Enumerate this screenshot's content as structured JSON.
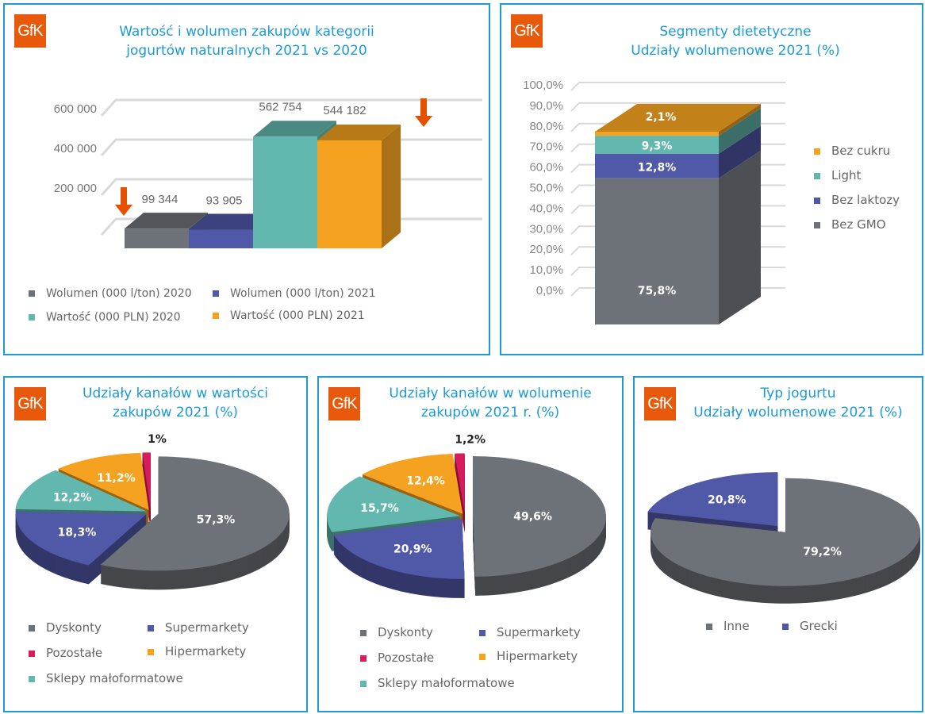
{
  "logo": "GfK",
  "chart_data": [
    {
      "type": "bar",
      "title": "Wartość i wolumen zakupów kategorii jogurtów naturalnych 2021 vs 2020",
      "title_lines": [
        "Wartość i wolumen zakupów kategorii",
        "jogurtów naturalnych 2021 vs 2020"
      ],
      "yticks": [
        "600 000",
        "400 000",
        "200 000"
      ],
      "ylim": [
        0,
        600000
      ],
      "series": [
        {
          "name": "Wolumen (000 l/ton) 2020",
          "value": 99344,
          "label": "99 344",
          "color": "#6d7178"
        },
        {
          "name": "Wolumen (000 l/ton) 2021",
          "value": 93905,
          "label": "93 905",
          "color": "#5058a8"
        },
        {
          "name": "Wartość (000 PLN) 2020",
          "value": 562754,
          "label": "562 754",
          "color": "#62b8ae"
        },
        {
          "name": "Wartość (000 PLN) 2021",
          "value": 544182,
          "label": "544 182",
          "color": "#f4a21f"
        }
      ],
      "annotations": [
        "down-arrow near volume bars",
        "down-arrow near value bars"
      ]
    },
    {
      "type": "bar",
      "stacked": true,
      "title": "Segmenty dietetyczne Udziały wolumenowe 2021 (%)",
      "title_lines": [
        "Segmenty dietetyczne",
        "Udziały wolumenowe 2021 (%)"
      ],
      "yticks": [
        "100,0%",
        "90,0%",
        "80,0%",
        "70,0%",
        "60,0%",
        "50,0%",
        "40,0%",
        "30,0%",
        "20,0%",
        "10,0%",
        "0,0%"
      ],
      "ylim": [
        0,
        100
      ],
      "series": [
        {
          "name": "Bez GMO",
          "value": 75.8,
          "label": "75,8%",
          "color": "#6d7178"
        },
        {
          "name": "Bez laktozy",
          "value": 12.8,
          "label": "12,8%",
          "color": "#5058a8"
        },
        {
          "name": "Light",
          "value": 9.3,
          "label": "9,3%",
          "color": "#62b8ae"
        },
        {
          "name": "Bez cukru",
          "value": 2.1,
          "label": "2,1%",
          "color": "#f4a21f"
        }
      ],
      "legend_order": [
        "Bez cukru",
        "Light",
        "Bez laktozy",
        "Bez GMO"
      ],
      "legend": "right"
    },
    {
      "type": "pie",
      "title": "Udziały kanałów w wartości zakupów 2021 (%)",
      "title_lines": [
        "Udziały kanałów w wartości",
        "zakupów 2021 (%)"
      ],
      "slices": [
        {
          "name": "Dyskonty",
          "value": 57.3,
          "label": "57,3%",
          "color": "#6d7178"
        },
        {
          "name": "Supermarkety",
          "value": 18.3,
          "label": "18,3%",
          "color": "#5058a8"
        },
        {
          "name": "Sklepy małoformatowe",
          "value": 12.2,
          "label": "12,2%",
          "color": "#62b8ae"
        },
        {
          "name": "Hipermarkety",
          "value": 11.2,
          "label": "11,2%",
          "color": "#f4a21f"
        },
        {
          "name": "Pozostałe",
          "value": 1,
          "label": "1%",
          "color": "#d81b5a"
        }
      ],
      "legend": [
        "Dyskonty",
        "Supermarkety",
        "Pozostałe",
        "Hipermarkety",
        "Sklepy małoformatowe"
      ]
    },
    {
      "type": "pie",
      "title": "Udziały kanałów w wolumenie zakupów 2021 r. (%)",
      "title_lines": [
        "Udziały kanałów w wolumenie",
        "zakupów 2021 r. (%)"
      ],
      "slices": [
        {
          "name": "Dyskonty",
          "value": 49.6,
          "label": "49,6%",
          "color": "#6d7178"
        },
        {
          "name": "Supermarkety",
          "value": 20.9,
          "label": "20,9%",
          "color": "#5058a8"
        },
        {
          "name": "Sklepy małoformatowe",
          "value": 15.7,
          "label": "15,7%",
          "color": "#62b8ae"
        },
        {
          "name": "Hipermarkety",
          "value": 12.4,
          "label": "12,4%",
          "color": "#f4a21f"
        },
        {
          "name": "Pozostałe",
          "value": 1.2,
          "label": "1,2%",
          "color": "#d81b5a"
        }
      ],
      "legend": [
        "Dyskonty",
        "Supermarkety",
        "Pozostałe",
        "Hipermarkety",
        "Sklepy małoformatowe"
      ]
    },
    {
      "type": "pie",
      "title": "Typ jogurtu Udziały wolumenowe 2021 (%)",
      "title_lines": [
        "Typ jogurtu",
        "Udziały wolumenowe 2021 (%)"
      ],
      "slices": [
        {
          "name": "Inne",
          "value": 79.2,
          "label": "79,2%",
          "color": "#6d7178"
        },
        {
          "name": "Grecki",
          "value": 20.8,
          "label": "20,8%",
          "color": "#5058a8"
        }
      ],
      "legend": [
        "Inne",
        "Grecki"
      ]
    }
  ]
}
